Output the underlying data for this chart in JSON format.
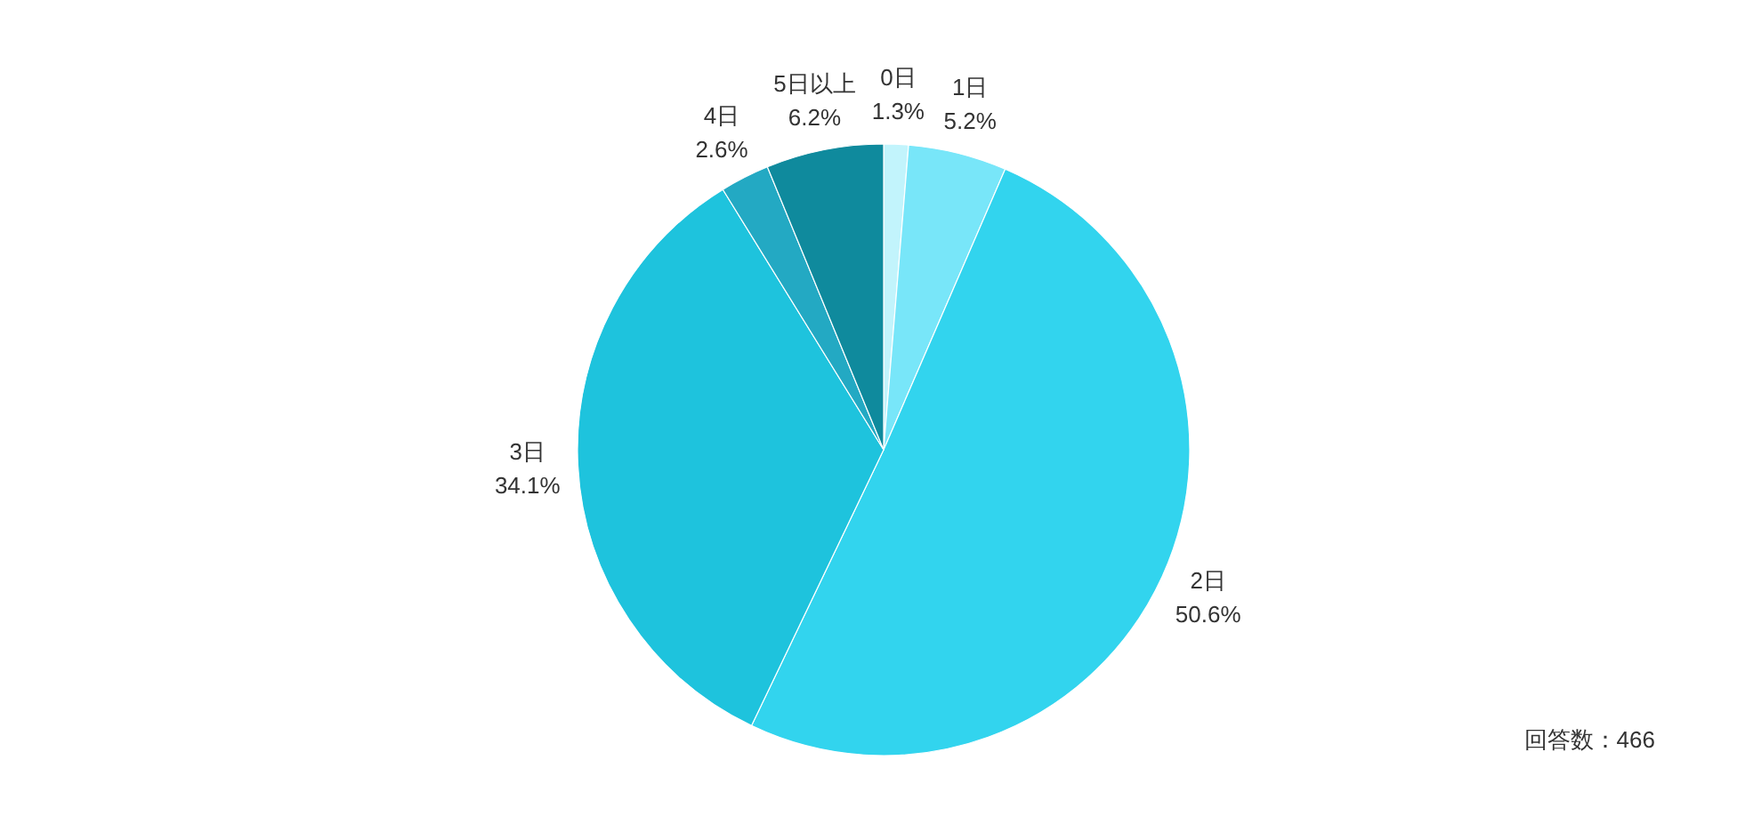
{
  "chart_data": {
    "type": "pie",
    "categories": [
      "0日",
      "1日",
      "2日",
      "3日",
      "4日",
      "5日以上"
    ],
    "values": [
      1.3,
      5.2,
      50.6,
      34.1,
      2.6,
      6.2
    ],
    "colors": [
      "#c2f4fc",
      "#78e6f9",
      "#32d4ee",
      "#1ec3dd",
      "#23a9c3",
      "#0f8a9d"
    ],
    "value_labels": [
      "1.3%",
      "5.2%",
      "50.6%",
      "34.1%",
      "2.6%",
      "6.2%"
    ],
    "annotations": [
      "回答数：466"
    ]
  }
}
